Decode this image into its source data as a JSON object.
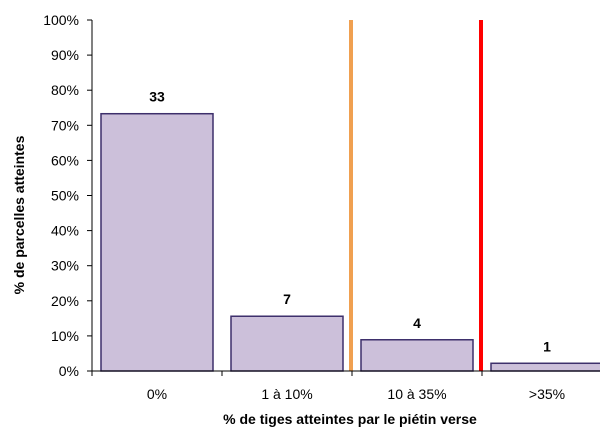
{
  "chart_data": {
    "type": "bar",
    "title": "",
    "xlabel": "% de tiges atteintes par le piétin verse",
    "ylabel": "% de parcelles atteintes",
    "categories": [
      "0%",
      "1 à 10%",
      "10 à 35%",
      ">35%"
    ],
    "values": [
      73.3,
      15.6,
      8.9,
      2.2
    ],
    "data_labels": [
      "33",
      "7",
      "4",
      "1"
    ],
    "ylim": [
      0,
      100
    ],
    "y_ticks": [
      0,
      10,
      20,
      30,
      40,
      50,
      60,
      70,
      80,
      90,
      100
    ],
    "y_tick_labels": [
      "0%",
      "10%",
      "20%",
      "30%",
      "40%",
      "50%",
      "60%",
      "70%",
      "80%",
      "90%",
      "100%"
    ],
    "grid": false,
    "legend": "none",
    "threshold_lines": [
      {
        "between_categories": [
          1,
          2
        ],
        "color": "#f0a050"
      },
      {
        "between_categories": [
          2,
          3
        ],
        "color": "#ff0000"
      }
    ],
    "colors": {
      "bar_fill": "#ccc0da",
      "bar_stroke": "#3d2f6b",
      "axis": "#000000"
    }
  }
}
